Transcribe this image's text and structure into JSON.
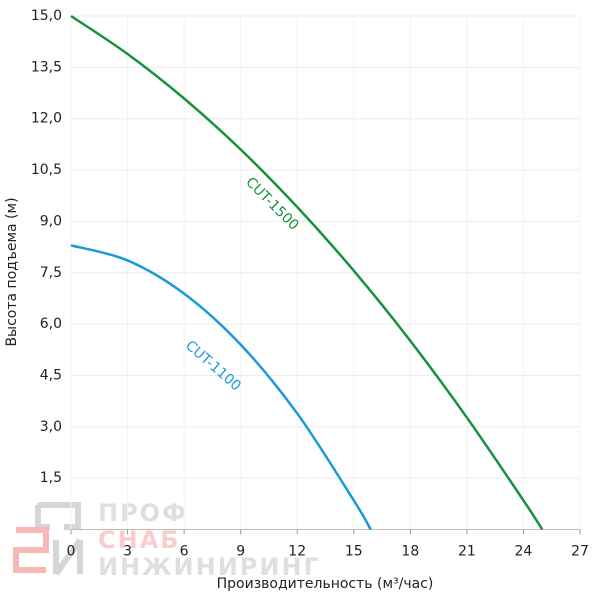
{
  "chart_data": {
    "type": "line",
    "xlabel": "Производительность (м³/час)",
    "ylabel": "Высота подъема (м)",
    "xlim": [
      0,
      27
    ],
    "ylim": [
      0,
      15
    ],
    "xticks": [
      0,
      3,
      6,
      9,
      12,
      15,
      18,
      21,
      24,
      27
    ],
    "yticks": [
      {
        "value": 1.5,
        "label": "1,5"
      },
      {
        "value": 3,
        "label": "3,0"
      },
      {
        "value": 4.5,
        "label": "4,5"
      },
      {
        "value": 6,
        "label": "6,0"
      },
      {
        "value": 7.5,
        "label": "7,5"
      },
      {
        "value": 9,
        "label": "9,0"
      },
      {
        "value": 10.5,
        "label": "10,5"
      },
      {
        "value": 12,
        "label": "12,0"
      },
      {
        "value": 13.5,
        "label": "13,5"
      },
      {
        "value": 15,
        "label": "15,0"
      }
    ],
    "grid": true,
    "series": [
      {
        "name": "CUT-1500",
        "color": "#17913d",
        "x": [
          0,
          3,
          6,
          9,
          12,
          15,
          18,
          21,
          24,
          25
        ],
        "values": [
          15,
          13.89,
          12.59,
          11.1,
          9.42,
          7.56,
          5.51,
          3.27,
          0.85,
          0
        ]
      },
      {
        "name": "CUT-1100",
        "color": "#1a9ad6",
        "x": [
          0,
          3,
          6,
          9,
          12,
          15,
          15.9
        ],
        "values": [
          8.3,
          7.86,
          6.89,
          5.4,
          3.39,
          0.85,
          0
        ]
      }
    ],
    "watermark": [
      "ПРОФ",
      "СНАБ",
      "ИНЖИНИРИНГ"
    ]
  }
}
